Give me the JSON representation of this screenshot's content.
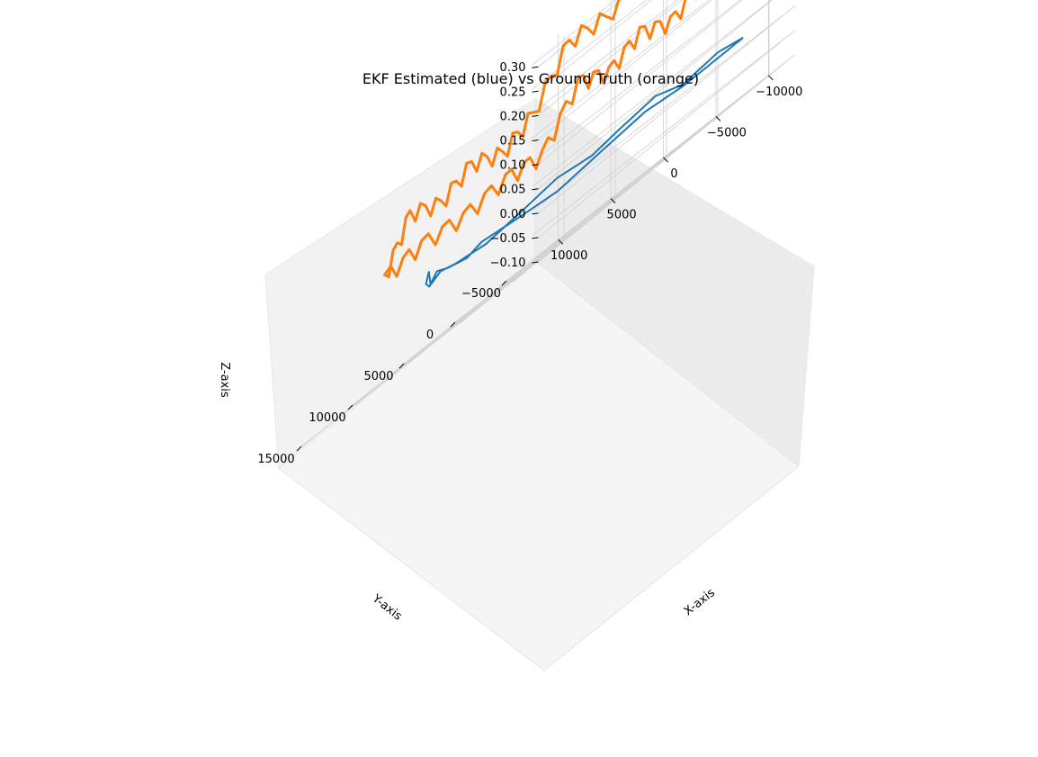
{
  "chart_data": {
    "type": "line",
    "projection": "3d",
    "title": "EKF Estimated (blue) vs Ground Truth (orange)",
    "xlabel": "X-axis",
    "ylabel": "Y-axis",
    "zlabel": "Z-axis",
    "xlim": [
      -12500,
      12500
    ],
    "ylim": [
      -7500,
      17500
    ],
    "zlim": [
      -0.1,
      0.32
    ],
    "x_ticks": [
      "−10000",
      "−5000",
      "0",
      "5000",
      "10000"
    ],
    "y_ticks": [
      "−5000",
      "0",
      "5000",
      "10000",
      "15000"
    ],
    "z_ticks": [
      "−0.10",
      "−0.05",
      "0.00",
      "0.05",
      "0.10",
      "0.15",
      "0.20",
      "0.25",
      "0.30"
    ],
    "grid": true,
    "series": [
      {
        "color": "#1f77b4",
        "x": [
          -11000,
          -8000,
          -5000,
          -2000,
          1000,
          4000,
          7000,
          9500,
          11500,
          11500,
          10000,
          8000,
          7000,
          6000,
          5000,
          3000,
          1000,
          -1500,
          -3500,
          -5000,
          -7000,
          -9000,
          -10500,
          -11200,
          -11500,
          -11000
        ],
        "y": [
          -4000,
          -4600,
          -4300,
          -4700,
          -4200,
          -4600,
          -4300,
          -3800,
          -2000,
          1000,
          4000,
          7000,
          8200,
          9500,
          10200,
          11500,
          12500,
          13200,
          13800,
          12000,
          10000,
          8000,
          5000,
          2000,
          -1000,
          -4000
        ],
        "z": [
          0.02,
          0.03,
          0.02,
          0.04,
          0.03,
          0.02,
          0.03,
          0.02,
          0.01,
          0.02,
          0.03,
          0.02,
          0.05,
          0.03,
          0.02,
          0.04,
          0.03,
          0.02,
          0.03,
          0.02,
          0.01,
          0.02,
          0.03,
          0.02,
          0.02,
          0.02
        ]
      },
      {
        "color": "#ff7f0e",
        "x": [
          -7500,
          -4000,
          0,
          4000,
          7500,
          8000,
          8000,
          8000,
          8000,
          8000,
          7500,
          4000,
          0,
          -4000,
          -7500,
          -8000,
          -8000,
          -8000,
          -8000,
          -8000,
          -7500
        ],
        "y": [
          -6000,
          -6000,
          -6000,
          -6000,
          -6000,
          -3000,
          0,
          3000,
          6000,
          9000,
          12000,
          12000,
          12000,
          12000,
          12000,
          9000,
          6000,
          3000,
          0,
          -3000,
          -6000
        ],
        "z": [
          0.3,
          0.28,
          0.3,
          0.28,
          0.29,
          0.2,
          0.17,
          0.2,
          0.17,
          0.2,
          0.11,
          0.12,
          0.11,
          0.12,
          0.11,
          0.2,
          0.17,
          0.2,
          0.17,
          0.2,
          0.3
        ]
      }
    ]
  }
}
